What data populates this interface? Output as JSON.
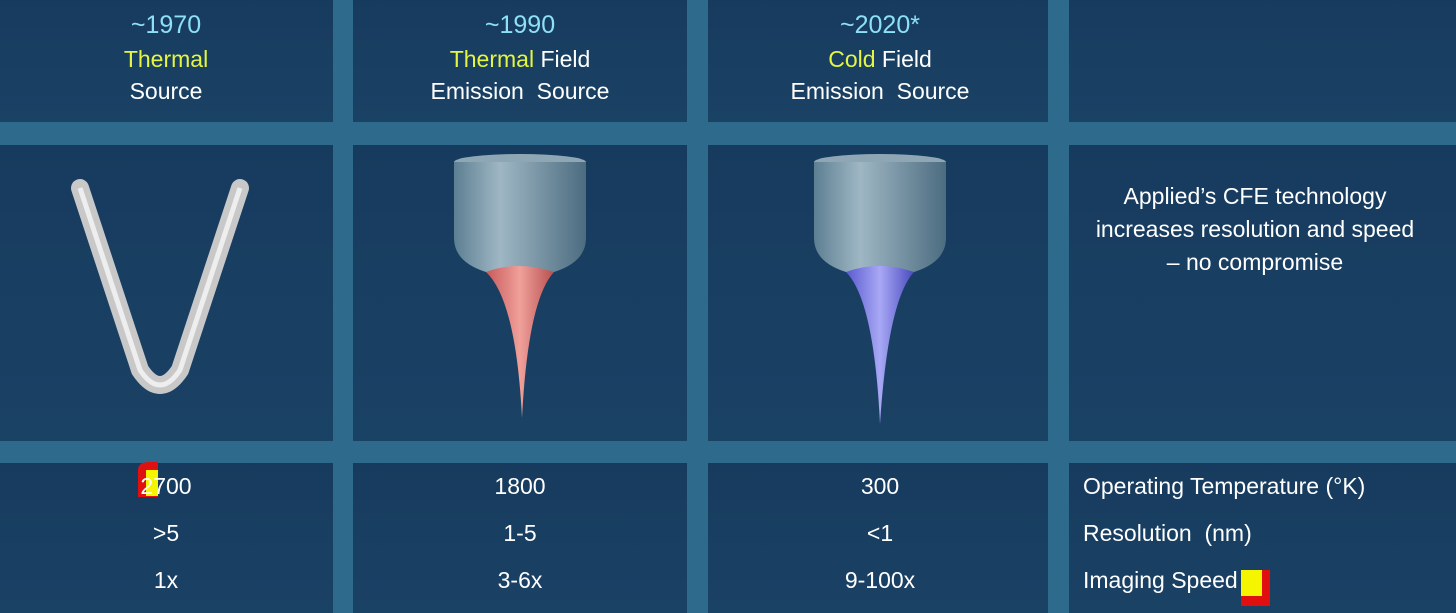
{
  "columns": [
    {
      "year": "~1970",
      "highlight": "Thermal",
      "line2": "Source",
      "values": [
        "2700",
        ">5",
        "1x"
      ]
    },
    {
      "year": "~1990",
      "highlight": "Thermal",
      "rest": "Field",
      "line2": "Emission  Source",
      "values": [
        "1800",
        "1-5",
        "3-6x"
      ]
    },
    {
      "year": "~2020*",
      "highlight": "Cold",
      "rest": "Field",
      "line2": "Emission  Source",
      "values": [
        "300",
        "<1",
        "9-100x"
      ]
    }
  ],
  "metrics": [
    "Operating Temperature (°K)",
    "Resolution  (nm)",
    "Imaging Speed"
  ],
  "note": "Applied’s CFE technology increases resolution and speed – no compromise"
}
